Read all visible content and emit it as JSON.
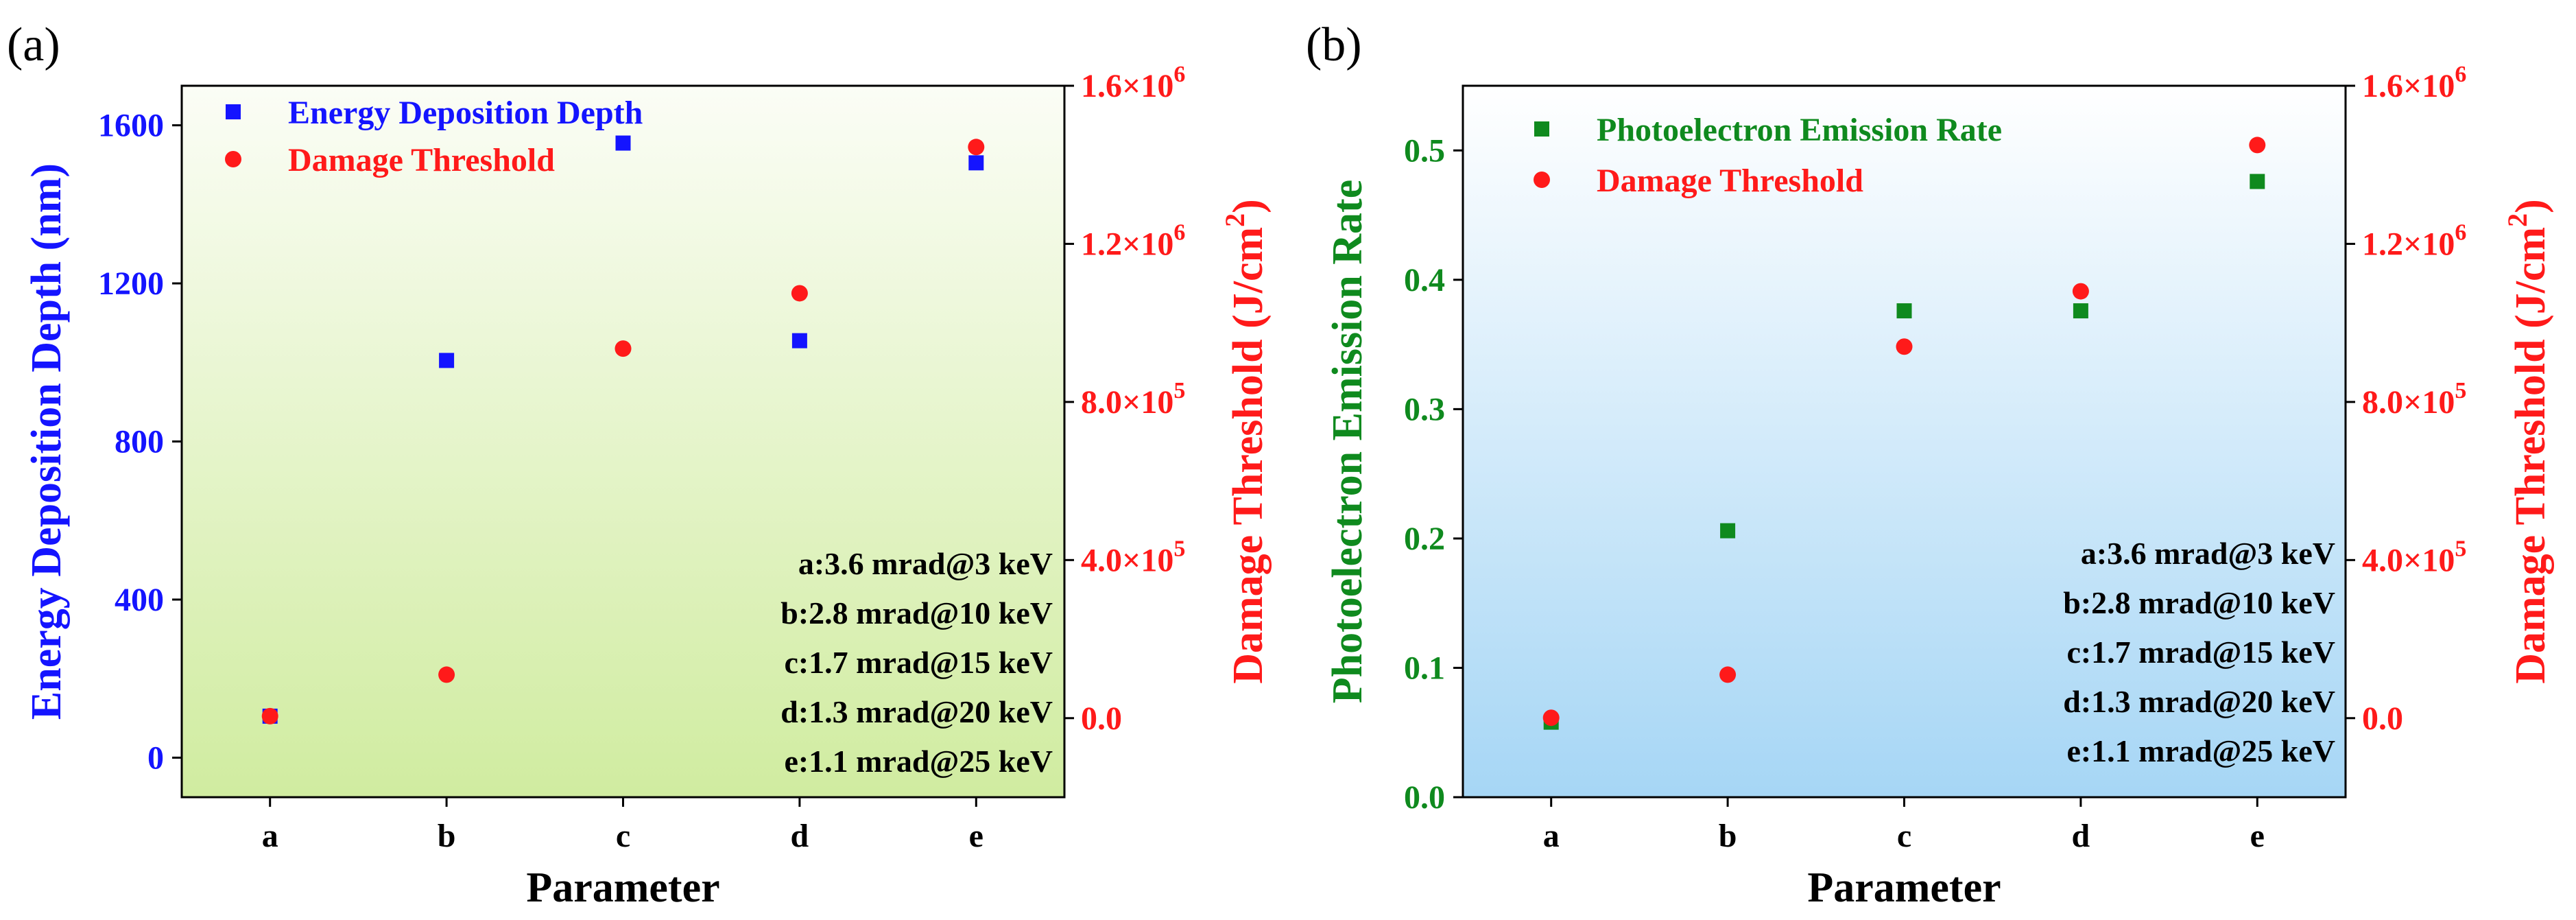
{
  "chart_data": [
    {
      "panel_label": "(a)",
      "type": "scatter",
      "xlabel": "Parameter",
      "categories": [
        "a",
        "b",
        "c",
        "d",
        "e"
      ],
      "left_axis": {
        "label": "Energy Deposition Depth (nm)",
        "range": [
          -100,
          1700
        ],
        "ticks": [
          0,
          400,
          800,
          1200,
          1600
        ],
        "tick_labels": [
          "0",
          "400",
          "800",
          "1200",
          "1600"
        ],
        "color": "#1414ff"
      },
      "right_axis": {
        "label_main": "Damage Threshold (J/cm",
        "label_sup": "2",
        "label_end": ")",
        "range": [
          -200000,
          1600000
        ],
        "ticks": [
          0,
          400000,
          800000,
          1200000,
          1600000
        ],
        "tick_labels": [
          {
            "mant": "0.0",
            "exp": ""
          },
          {
            "mant": "4.0×10",
            "exp": "5"
          },
          {
            "mant": "8.0×10",
            "exp": "5"
          },
          {
            "mant": "1.2×10",
            "exp": "6"
          },
          {
            "mant": "1.6×10",
            "exp": "6"
          }
        ],
        "color": "#ff1a1a"
      },
      "series": [
        {
          "name": "Energy Deposition Depth",
          "axis": "left",
          "marker": "square",
          "color": "#1414ff",
          "values": [
            105,
            1005,
            1555,
            1055,
            1505
          ]
        },
        {
          "name": "Damage Threshold",
          "axis": "right",
          "marker": "circle",
          "color": "#ff1a1a",
          "values": [
            5000,
            110000,
            935000,
            1075000,
            1445000
          ]
        }
      ],
      "legend_position": "top-left",
      "annotations": [
        "a:3.6 mrad@3 keV",
        "b:2.8 mrad@10 keV",
        "c:1.7 mrad@15 keV",
        "d:1.3 mrad@20 keV",
        "e:1.1 mrad@25 keV"
      ],
      "background": {
        "top": "#fbfdf6",
        "bottom": "#d0eca0"
      }
    },
    {
      "panel_label": "(b)",
      "type": "scatter",
      "xlabel": "Parameter",
      "categories": [
        "a",
        "b",
        "c",
        "d",
        "e"
      ],
      "left_axis": {
        "label": "Photoelectron Emission Rate",
        "range": [
          0,
          0.55
        ],
        "ticks": [
          0,
          0.1,
          0.2,
          0.3,
          0.4,
          0.5
        ],
        "tick_labels": [
          "0.0",
          "0.1",
          "0.2",
          "0.3",
          "0.4",
          "0.5"
        ],
        "color": "#0f8a1e"
      },
      "right_axis": {
        "label_main": "Damage Threshold (J/cm",
        "label_sup": "2",
        "label_end": ")",
        "range": [
          -200000,
          1600000
        ],
        "ticks": [
          0,
          400000,
          800000,
          1200000,
          1600000
        ],
        "tick_labels": [
          {
            "mant": "0.0",
            "exp": ""
          },
          {
            "mant": "4.0×10",
            "exp": "5"
          },
          {
            "mant": "8.0×10",
            "exp": "5"
          },
          {
            "mant": "1.2×10",
            "exp": "6"
          },
          {
            "mant": "1.6×10",
            "exp": "6"
          }
        ],
        "color": "#ff1a1a"
      },
      "series": [
        {
          "name": "Photoelectron Emission Rate",
          "axis": "left",
          "marker": "square",
          "color": "#0f8a1e",
          "values": [
            0.058,
            0.206,
            0.376,
            0.376,
            0.476
          ]
        },
        {
          "name": "Damage Threshold",
          "axis": "right",
          "marker": "circle",
          "color": "#ff1a1a",
          "values": [
            1000,
            110000,
            940000,
            1080000,
            1450000
          ]
        }
      ],
      "legend_position": "top-left",
      "annotations": [
        "a:3.6 mrad@3 keV",
        "b:2.8 mrad@10 keV",
        "c:1.7 mrad@15 keV",
        "d:1.3 mrad@20 keV",
        "e:1.1 mrad@25 keV"
      ],
      "background": {
        "top": "#ffffff",
        "bottom": "#a6d6f5"
      }
    }
  ]
}
